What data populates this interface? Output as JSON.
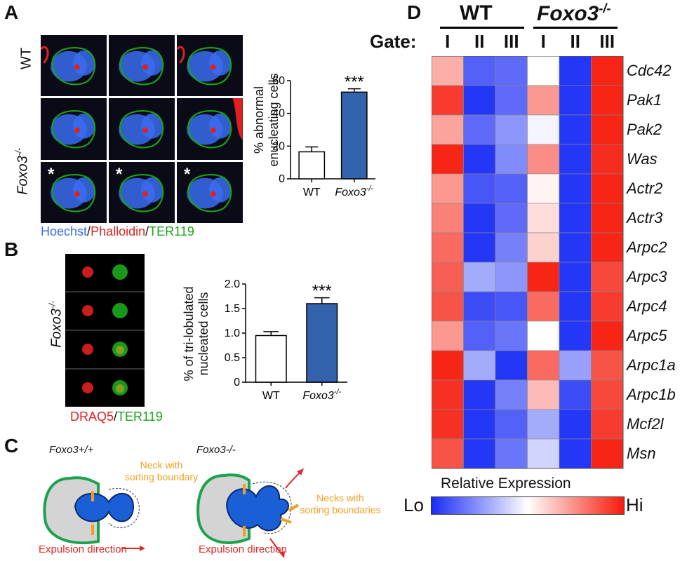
{
  "panels": {
    "A": "A",
    "B": "B",
    "C": "C",
    "D": "D"
  },
  "panelA": {
    "row_label_wt": "WT",
    "row_label_ko": "Foxo3",
    "row_label_ko_sup": "-/-",
    "asterisk": "*",
    "stain_hoechst": "Hoechst",
    "stain_sep1": "/",
    "stain_phalloidin": "Phalloidin",
    "stain_sep2": "/",
    "stain_ter119": "TER119",
    "colors": {
      "hoechst": "#3a6cf0",
      "phalloidin": "#e02020",
      "ter119": "#1aa01a"
    }
  },
  "chartA": {
    "type": "bar",
    "categories": [
      "WT",
      "Foxo3-/-"
    ],
    "category_labels": [
      "WT",
      "Foxo3"
    ],
    "category_sup": [
      "",
      "-/-"
    ],
    "values": [
      16.5,
      53
    ],
    "errors": [
      3,
      2
    ],
    "ylabel_line1": "% abnormal",
    "ylabel_line2": "enucleating cells",
    "ylim": [
      0,
      60
    ],
    "ticks": [
      0,
      20,
      40,
      60
    ],
    "tick_labels": [
      "0",
      "20",
      "40",
      "60"
    ],
    "significance": "***",
    "bar_colors": [
      "#ffffff",
      "#3463ad"
    ]
  },
  "panelB": {
    "row_label": "Foxo3",
    "row_label_sup": "-/-",
    "stain_draq5": "DRAQ5",
    "stain_sep": "/",
    "stain_ter119": "TER119",
    "colors": {
      "draq5": "#e02020",
      "ter119": "#1aa01a"
    }
  },
  "chartB": {
    "type": "bar",
    "categories": [
      "WT",
      "Foxo3-/-"
    ],
    "category_labels": [
      "WT",
      "Foxo3"
    ],
    "category_sup": [
      "",
      "-/-"
    ],
    "values": [
      0.95,
      1.6
    ],
    "errors": [
      0.08,
      0.12
    ],
    "ylabel_line1": "% of tri-lobulated",
    "ylabel_line2": "nucleated cells",
    "ylim": [
      0,
      2.0
    ],
    "ticks": [
      0,
      0.5,
      1.0,
      1.5,
      2.0
    ],
    "tick_labels": [
      "0",
      "0.5",
      "1.0",
      "1.5",
      "2.0"
    ],
    "significance": "***",
    "bar_colors": [
      "#ffffff",
      "#3463ad"
    ]
  },
  "panelC": {
    "left_title": "Foxo3+/+",
    "left_neck_line1": "Neck with",
    "left_neck_line2": "sorting boundary",
    "left_expulsion": "Expulsion direction",
    "right_title": "Foxo3-/-",
    "right_neck_line1": "Necks with",
    "right_neck_line2": "sorting boundaries",
    "right_expulsion": "Expulsion direction",
    "colors": {
      "neck": "#f0a020",
      "arrow": "#e02828",
      "nucleus": "#1b5fd6",
      "membrane": "#1ca24a"
    }
  },
  "heatmap": {
    "group_wt": "WT",
    "group_ko": "Foxo3",
    "group_ko_sup": "-/-",
    "gate_title": "Gate:",
    "gates": [
      "I",
      "II",
      "III",
      "I",
      "II",
      "III"
    ],
    "genes": [
      "Cdc42",
      "Pak1",
      "Pak2",
      "Was",
      "Actr2",
      "Actr3",
      "Arpc2",
      "Arpc3",
      "Arpc4",
      "Arpc5",
      "Arpc1a",
      "Arpc1b",
      "Mcf2l",
      "Msn"
    ],
    "values": [
      [
        0.35,
        -0.75,
        -0.7,
        0.0,
        -0.95,
        0.95
      ],
      [
        0.85,
        -0.95,
        -0.7,
        0.45,
        -0.95,
        0.95
      ],
      [
        0.4,
        -0.7,
        -0.5,
        -0.05,
        -0.95,
        0.95
      ],
      [
        0.95,
        -0.95,
        -0.55,
        0.5,
        -0.95,
        0.92
      ],
      [
        0.45,
        -0.8,
        -0.75,
        0.05,
        -0.95,
        0.95
      ],
      [
        0.55,
        -0.95,
        -0.7,
        0.15,
        -0.95,
        0.95
      ],
      [
        0.65,
        -0.95,
        -0.6,
        0.2,
        -0.95,
        0.95
      ],
      [
        0.7,
        -0.4,
        -0.5,
        0.95,
        -0.95,
        0.8
      ],
      [
        0.75,
        -0.85,
        -0.8,
        0.65,
        -0.95,
        0.85
      ],
      [
        0.45,
        -0.75,
        -0.65,
        0.0,
        -0.95,
        0.95
      ],
      [
        0.95,
        -0.4,
        -0.95,
        0.65,
        -0.45,
        0.75
      ],
      [
        0.9,
        -0.95,
        -0.6,
        0.3,
        -0.85,
        0.8
      ],
      [
        0.9,
        -0.95,
        -0.75,
        -0.4,
        -0.95,
        0.85
      ],
      [
        0.75,
        -0.95,
        -0.65,
        -0.2,
        -0.95,
        0.95
      ]
    ],
    "legend_title": "Relative Expression",
    "legend_lo": "Lo",
    "legend_hi": "Hi",
    "scale_colors": {
      "lo": "#1a2cf5",
      "mid": "#ffffff",
      "hi": "#f51a0a"
    }
  }
}
